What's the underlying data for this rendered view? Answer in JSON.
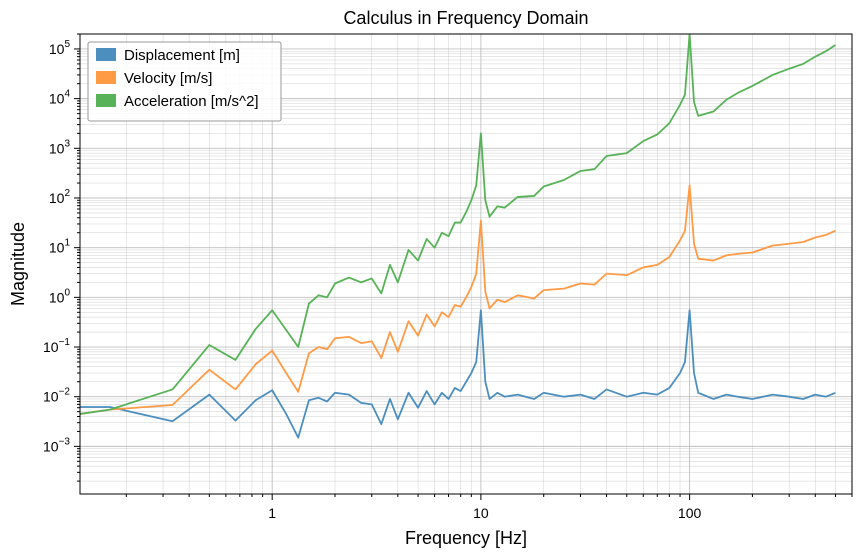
{
  "chart_data": {
    "type": "line",
    "title": "Calculus in Frequency Domain",
    "xlabel": "Frequency [Hz]",
    "ylabel": "Magnitude",
    "xscale": "log",
    "yscale": "log",
    "xlim": [
      0.12,
      600
    ],
    "ylim": [
      0.00011,
      200000
    ],
    "x_ticks": [
      {
        "value": 1,
        "label": "1"
      },
      {
        "value": 10,
        "label": "10"
      },
      {
        "value": 100,
        "label": "100"
      }
    ],
    "y_ticks": [
      {
        "value": 0.001,
        "base": "10",
        "exp": "−3"
      },
      {
        "value": 0.01,
        "base": "10",
        "exp": "−2"
      },
      {
        "value": 0.1,
        "base": "10",
        "exp": "−1"
      },
      {
        "value": 1,
        "base": "10",
        "exp": "0"
      },
      {
        "value": 10,
        "base": "10",
        "exp": "1"
      },
      {
        "value": 100,
        "base": "10",
        "exp": "2"
      },
      {
        "value": 1000,
        "base": "10",
        "exp": "3"
      },
      {
        "value": 10000,
        "base": "10",
        "exp": "4"
      },
      {
        "value": 100000,
        "base": "10",
        "exp": "5"
      }
    ],
    "grid": true,
    "legend_position": "top-left",
    "series": [
      {
        "name": "Displacement [m]",
        "color": "#4c8fbf",
        "x": [
          0.12,
          0.167,
          0.333,
          0.5,
          0.667,
          0.833,
          1.0,
          1.167,
          1.333,
          1.5,
          1.667,
          1.833,
          2.0,
          2.333,
          2.667,
          3.0,
          3.333,
          3.667,
          4.0,
          4.5,
          5,
          5.5,
          6,
          6.5,
          7,
          7.5,
          8,
          8.5,
          9,
          9.5,
          10,
          10.5,
          11,
          12,
          13,
          15,
          18,
          20,
          25,
          30,
          35,
          40,
          50,
          60,
          70,
          80,
          90,
          95,
          100,
          105,
          110,
          130,
          150,
          170,
          200,
          250,
          300,
          350,
          400,
          450,
          500
        ],
        "y": [
          0.0062,
          0.0062,
          0.0032,
          0.011,
          0.0033,
          0.0085,
          0.0135,
          0.0045,
          0.0015,
          0.0085,
          0.0095,
          0.008,
          0.012,
          0.011,
          0.0075,
          0.007,
          0.0028,
          0.009,
          0.0035,
          0.012,
          0.006,
          0.013,
          0.007,
          0.012,
          0.009,
          0.015,
          0.013,
          0.02,
          0.03,
          0.05,
          0.55,
          0.02,
          0.009,
          0.012,
          0.01,
          0.011,
          0.009,
          0.012,
          0.01,
          0.011,
          0.009,
          0.014,
          0.01,
          0.012,
          0.011,
          0.015,
          0.03,
          0.05,
          0.55,
          0.03,
          0.012,
          0.009,
          0.011,
          0.01,
          0.009,
          0.011,
          0.01,
          0.009,
          0.011,
          0.01,
          0.012
        ]
      },
      {
        "name": "Velocity [m/s]",
        "color": "#ff9a45",
        "x": [
          0.12,
          0.167,
          0.333,
          0.5,
          0.667,
          0.833,
          1.0,
          1.167,
          1.333,
          1.5,
          1.667,
          1.833,
          2.0,
          2.333,
          2.667,
          3.0,
          3.333,
          3.667,
          4.0,
          4.5,
          5,
          5.5,
          6,
          6.5,
          7,
          7.5,
          8,
          8.5,
          9,
          9.5,
          10,
          10.5,
          11,
          12,
          13,
          15,
          18,
          20,
          25,
          30,
          35,
          40,
          50,
          60,
          70,
          80,
          90,
          95,
          100,
          105,
          110,
          130,
          150,
          170,
          200,
          250,
          300,
          350,
          400,
          450,
          500
        ],
        "y": [
          0.0045,
          0.0055,
          0.0068,
          0.035,
          0.014,
          0.045,
          0.085,
          0.03,
          0.0125,
          0.075,
          0.1,
          0.09,
          0.15,
          0.16,
          0.12,
          0.13,
          0.06,
          0.2,
          0.08,
          0.33,
          0.17,
          0.45,
          0.26,
          0.5,
          0.4,
          0.7,
          0.65,
          1.0,
          1.6,
          3.0,
          35.0,
          1.3,
          0.6,
          0.9,
          0.8,
          1.1,
          0.95,
          1.4,
          1.5,
          1.9,
          1.8,
          3.0,
          2.8,
          4.0,
          4.5,
          6.5,
          14.0,
          22.0,
          180.0,
          12.0,
          6.0,
          5.5,
          7.0,
          7.5,
          8.0,
          11.0,
          12.0,
          13.0,
          16.0,
          18.0,
          22.0
        ]
      },
      {
        "name": "Acceleration [m/s^2]",
        "color": "#58b358",
        "x": [
          0.12,
          0.167,
          0.333,
          0.5,
          0.667,
          0.833,
          1.0,
          1.167,
          1.333,
          1.5,
          1.667,
          1.833,
          2.0,
          2.333,
          2.667,
          3.0,
          3.333,
          3.667,
          4.0,
          4.5,
          5,
          5.5,
          6,
          6.5,
          7,
          7.5,
          8,
          8.5,
          9,
          9.5,
          10,
          10.5,
          11,
          12,
          13,
          15,
          18,
          20,
          25,
          30,
          35,
          40,
          50,
          60,
          70,
          80,
          90,
          95,
          100,
          105,
          110,
          130,
          150,
          170,
          200,
          250,
          300,
          350,
          400,
          450,
          500
        ],
        "y": [
          0.0045,
          0.0055,
          0.014,
          0.11,
          0.055,
          0.23,
          0.55,
          0.22,
          0.1,
          0.75,
          1.1,
          1.0,
          1.9,
          2.5,
          2.0,
          2.4,
          1.2,
          4.5,
          2.0,
          9.0,
          5.5,
          15.0,
          10.0,
          20.0,
          17.0,
          32.0,
          32.0,
          52.0,
          90.0,
          180.0,
          2000.0,
          90.0,
          42.0,
          68.0,
          64.0,
          105.0,
          110.0,
          170.0,
          230.0,
          350.0,
          380.0,
          700.0,
          800.0,
          1400.0,
          1900.0,
          3200.0,
          7500.0,
          12000.0,
          200000.0,
          8500.0,
          4500.0,
          5500.0,
          9500.0,
          13000.0,
          18000.0,
          30000.0,
          40000.0,
          50000.0,
          70000.0,
          90000.0,
          120000.0
        ]
      }
    ]
  }
}
